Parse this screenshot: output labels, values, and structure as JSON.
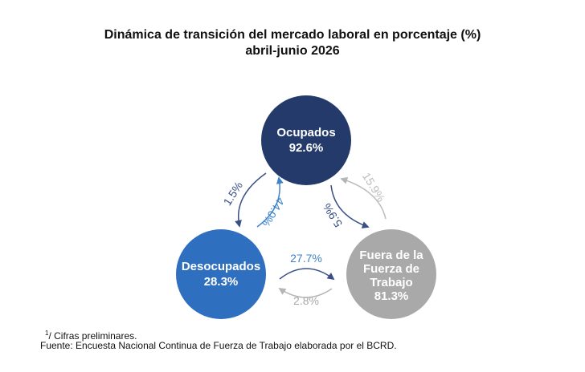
{
  "title": {
    "line1": "Dinámica de transición del mercado laboral en porcentaje (%)",
    "line2": "abril-junio 2026"
  },
  "nodes": {
    "ocupados": {
      "label": "Ocupados",
      "value": "92.6%",
      "color": "#233a6b"
    },
    "desocupados": {
      "label": "Desocupados",
      "value": "28.3%",
      "color": "#2f6fc0"
    },
    "fuera": {
      "label_lines": [
        "Fuera de la",
        "Fuerza de",
        "Trabajo"
      ],
      "value": "81.3%",
      "color": "#a9a9a9"
    }
  },
  "flows": {
    "ocupados_to_desocupados": {
      "value": "1.5%",
      "color": "#3a4f87"
    },
    "desocupados_to_ocupados": {
      "value": "44.0%",
      "color": "#3f83c9"
    },
    "ocupados_to_fuera": {
      "value": "5.9%",
      "color": "#3a4f87"
    },
    "fuera_to_ocupados": {
      "value": "15.9%",
      "color": "#bdbdbd"
    },
    "desocupados_to_fuera": {
      "value": "27.7%",
      "color": "#3f83c9"
    },
    "fuera_to_desocupados": {
      "value": "2.8%",
      "color": "#a9a9a9"
    }
  },
  "footnotes": {
    "mark": "1",
    "preliminary": "/ Cifras preliminares.",
    "source": "Fuente: Encuesta Nacional Continua de Fuerza de Trabajo elaborada por el BCRD."
  }
}
